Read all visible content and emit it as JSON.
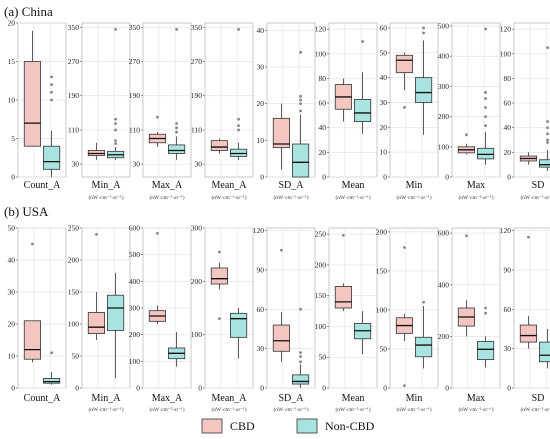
{
  "colors": {
    "cbd": "#f4c6c2",
    "non_cbd": "#a9e3e0",
    "stroke": "#333333",
    "grid": "#e4e4e4",
    "outlier": "#888888"
  },
  "legend": {
    "items": [
      {
        "key": "cbd",
        "label": "CBD"
      },
      {
        "key": "non_cbd",
        "label": "Non-CBD"
      }
    ]
  },
  "chart_data": [
    {
      "type": "boxplot",
      "panel_label": "(a) China",
      "subplots": [
        {
          "xlabel": "Count_A",
          "unit": "",
          "ylim": [
            0,
            20
          ],
          "ticks": [
            0,
            5,
            10,
            15,
            20
          ],
          "series": [
            {
              "name": "CBD",
              "min": 4,
              "q1": 4,
              "median": 7,
              "q3": 15,
              "max": 19,
              "outliers": []
            },
            {
              "name": "Non-CBD",
              "min": 0,
              "q1": 1,
              "median": 2,
              "q3": 4,
              "max": 6,
              "outliers": [
                10,
                11,
                12,
                13
              ]
            }
          ]
        },
        {
          "xlabel": "Min_A",
          "unit": "(nW·cm⁻²·sr⁻¹)",
          "ylim": [
            0,
            360
          ],
          "ticks": [
            30,
            110,
            190,
            270,
            350
          ],
          "series": [
            {
              "name": "CBD",
              "min": 40,
              "q1": 50,
              "median": 55,
              "q3": 62,
              "max": 80,
              "outliers": []
            },
            {
              "name": "Non-CBD",
              "min": 40,
              "q1": 45,
              "median": 52,
              "q3": 60,
              "max": 70,
              "outliers": [
                78,
                85,
                110,
                125,
                135,
                345
              ]
            }
          ]
        },
        {
          "xlabel": "Max_A",
          "unit": "(nW·cm⁻²·sr⁻¹)",
          "ylim": [
            0,
            360
          ],
          "ticks": [
            30,
            110,
            190,
            270,
            350
          ],
          "series": [
            {
              "name": "CBD",
              "min": 70,
              "q1": 80,
              "median": 90,
              "q3": 100,
              "max": 105,
              "outliers": [
                140
              ]
            },
            {
              "name": "Non-CBD",
              "min": 40,
              "q1": 55,
              "median": 62,
              "q3": 75,
              "max": 95,
              "outliers": [
                105,
                115,
                125,
                345
              ]
            }
          ]
        },
        {
          "xlabel": "Mean_A",
          "unit": "(nW·cm⁻²·sr⁻¹)",
          "ylim": [
            0,
            360
          ],
          "ticks": [
            30,
            110,
            190,
            270,
            350
          ],
          "series": [
            {
              "name": "CBD",
              "min": 55,
              "q1": 62,
              "median": 70,
              "q3": 85,
              "max": 90,
              "outliers": []
            },
            {
              "name": "Non-CBD",
              "min": 40,
              "q1": 48,
              "median": 55,
              "q3": 65,
              "max": 80,
              "outliers": [
                110,
                120,
                135,
                345
              ]
            }
          ]
        },
        {
          "xlabel": "SD_A",
          "unit": "(nW·cm⁻²·sr⁻¹)",
          "ylim": [
            0,
            42
          ],
          "ticks": [
            0,
            10,
            20,
            30,
            40
          ],
          "series": [
            {
              "name": "CBD",
              "min": 2,
              "q1": 8,
              "median": 9,
              "q3": 16,
              "max": 20,
              "outliers": []
            },
            {
              "name": "Non-CBD",
              "min": 0,
              "q1": 0,
              "median": 4,
              "q3": 9,
              "max": 17,
              "outliers": [
                18,
                20,
                21,
                22,
                34
              ]
            }
          ]
        },
        {
          "xlabel": "Mean",
          "unit": "(nW·cm⁻²·sr⁻¹)",
          "ylim": [
            0,
            125
          ],
          "ticks": [
            0,
            20,
            40,
            60,
            80,
            100,
            120
          ],
          "series": [
            {
              "name": "CBD",
              "min": 45,
              "q1": 55,
              "median": 65,
              "q3": 75,
              "max": 80,
              "outliers": []
            },
            {
              "name": "Non-CBD",
              "min": 35,
              "q1": 45,
              "median": 52,
              "q3": 63,
              "max": 85,
              "outliers": [
                110
              ]
            }
          ]
        },
        {
          "xlabel": "Min",
          "unit": "(nW·cm⁻²·sr⁻¹)",
          "ylim": [
            0,
            62
          ],
          "ticks": [
            0,
            10,
            20,
            30,
            40,
            50,
            60
          ],
          "series": [
            {
              "name": "CBD",
              "min": 35,
              "q1": 42,
              "median": 47,
              "q3": 49,
              "max": 50,
              "outliers": [
                28
              ]
            },
            {
              "name": "Non-CBD",
              "min": 17,
              "q1": 30,
              "median": 34,
              "q3": 40,
              "max": 55,
              "outliers": [
                58,
                60
              ]
            }
          ]
        },
        {
          "xlabel": "Max",
          "unit": "(nW·cm⁻²·sr⁻¹)",
          "ylim": [
            0,
            510
          ],
          "ticks": [
            0,
            100,
            200,
            300,
            400,
            500
          ],
          "series": [
            {
              "name": "CBD",
              "min": 75,
              "q1": 80,
              "median": 90,
              "q3": 100,
              "max": 110,
              "outliers": [
                140
              ]
            },
            {
              "name": "Non-CBD",
              "min": 40,
              "q1": 60,
              "median": 75,
              "q3": 95,
              "max": 150,
              "outliers": [
                170,
                200,
                230,
                260,
                280,
                490
              ]
            }
          ]
        },
        {
          "xlabel": "SD",
          "unit": "(nW·cm⁻²·sr⁻¹)",
          "ylim": [
            0,
            125
          ],
          "ticks": [
            0,
            20,
            40,
            60,
            80,
            100,
            120
          ],
          "series": [
            {
              "name": "CBD",
              "min": 10,
              "q1": 13,
              "median": 15,
              "q3": 17,
              "max": 20,
              "outliers": []
            },
            {
              "name": "Non-CBD",
              "min": 5,
              "q1": 8,
              "median": 10,
              "q3": 14,
              "max": 22,
              "outliers": [
                28,
                30,
                35,
                40,
                45,
                105
              ]
            }
          ]
        }
      ]
    },
    {
      "type": "boxplot",
      "panel_label": "(b) USA",
      "subplots": [
        {
          "xlabel": "Count_A",
          "unit": "",
          "ylim": [
            0,
            50
          ],
          "ticks": [
            0,
            10,
            20,
            30,
            40,
            50
          ],
          "series": [
            {
              "name": "CBD",
              "min": 8,
              "q1": 9,
              "median": 12,
              "q3": 21,
              "max": 21,
              "outliers": [
                45
              ]
            },
            {
              "name": "Non-CBD",
              "min": 1,
              "q1": 1.5,
              "median": 2,
              "q3": 3,
              "max": 5,
              "outliers": [
                11
              ]
            }
          ]
        },
        {
          "xlabel": "Min_A",
          "unit": "(nW·cm⁻²·sr⁻¹)",
          "ylim": [
            0,
            250
          ],
          "ticks": [
            0,
            50,
            100,
            150,
            200,
            250
          ],
          "series": [
            {
              "name": "CBD",
              "min": 75,
              "q1": 85,
              "median": 95,
              "q3": 118,
              "max": 150,
              "outliers": [
                240
              ]
            },
            {
              "name": "Non-CBD",
              "min": 15,
              "q1": 90,
              "median": 125,
              "q3": 145,
              "max": 180,
              "outliers": []
            }
          ]
        },
        {
          "xlabel": "Max_A",
          "unit": "(nW·cm⁻²·sr⁻¹)",
          "ylim": [
            0,
            600
          ],
          "ticks": [
            0,
            100,
            200,
            300,
            400,
            500,
            600
          ],
          "series": [
            {
              "name": "CBD",
              "min": 240,
              "q1": 250,
              "median": 270,
              "q3": 290,
              "max": 310,
              "outliers": [
                580
              ]
            },
            {
              "name": "Non-CBD",
              "min": 80,
              "q1": 110,
              "median": 130,
              "q3": 150,
              "max": 210,
              "outliers": []
            }
          ]
        },
        {
          "xlabel": "Mean_A",
          "unit": "(nW·cm⁻²·sr⁻¹)",
          "ylim": [
            0,
            300
          ],
          "ticks": [
            0,
            100,
            200,
            300
          ],
          "series": [
            {
              "name": "CBD",
              "min": 185,
              "q1": 195,
              "median": 205,
              "q3": 225,
              "max": 235,
              "outliers": [
                130,
                255
              ]
            },
            {
              "name": "Non-CBD",
              "min": 55,
              "q1": 95,
              "median": 130,
              "q3": 140,
              "max": 150,
              "outliers": []
            }
          ]
        },
        {
          "xlabel": "SD_A",
          "unit": "(nW·cm⁻²·sr⁻¹)",
          "ylim": [
            0,
            122
          ],
          "ticks": [
            0,
            30,
            60,
            90,
            120
          ],
          "series": [
            {
              "name": "CBD",
              "min": 20,
              "q1": 28,
              "median": 36,
              "q3": 48,
              "max": 58,
              "outliers": [
                105
              ]
            },
            {
              "name": "Non-CBD",
              "min": 0,
              "q1": 3,
              "median": 5,
              "q3": 10,
              "max": 18,
              "outliers": [
                20,
                24,
                27,
                60
              ]
            }
          ]
        },
        {
          "xlabel": "Mean",
          "unit": "(nW·cm⁻²·sr⁻¹)",
          "ylim": [
            0,
            260
          ],
          "ticks": [
            0,
            50,
            100,
            150,
            200,
            250
          ],
          "series": [
            {
              "name": "CBD",
              "min": 125,
              "q1": 130,
              "median": 140,
              "q3": 165,
              "max": 170,
              "outliers": [
                248
              ]
            },
            {
              "name": "Non-CBD",
              "min": 55,
              "q1": 80,
              "median": 93,
              "q3": 105,
              "max": 125,
              "outliers": []
            }
          ]
        },
        {
          "xlabel": "Min",
          "unit": "(nW·cm⁻²·sr⁻¹)",
          "ylim": [
            0,
            205
          ],
          "ticks": [
            0,
            50,
            100,
            150,
            200
          ],
          "series": [
            {
              "name": "CBD",
              "min": 60,
              "q1": 70,
              "median": 80,
              "q3": 90,
              "max": 95,
              "outliers": [
                3,
                180
              ]
            },
            {
              "name": "Non-CBD",
              "min": 25,
              "q1": 40,
              "median": 55,
              "q3": 65,
              "max": 105,
              "outliers": [
                110
              ]
            }
          ]
        },
        {
          "xlabel": "Max",
          "unit": "(nW·cm⁻²·sr⁻¹)",
          "ylim": [
            0,
            620
          ],
          "ticks": [
            0,
            200,
            400,
            600
          ],
          "series": [
            {
              "name": "CBD",
              "min": 200,
              "q1": 240,
              "median": 275,
              "q3": 310,
              "max": 340,
              "outliers": [
                590
              ]
            },
            {
              "name": "Non-CBD",
              "min": 80,
              "q1": 110,
              "median": 150,
              "q3": 180,
              "max": 200,
              "outliers": [
                290,
                310
              ]
            }
          ]
        },
        {
          "xlabel": "SD",
          "unit": "(nW·cm⁻²·sr⁻¹)",
          "ylim": [
            0,
            122
          ],
          "ticks": [
            0,
            30,
            60,
            90,
            120
          ],
          "series": [
            {
              "name": "CBD",
              "min": 30,
              "q1": 35,
              "median": 40,
              "q3": 48,
              "max": 55,
              "outliers": [
                115
              ]
            },
            {
              "name": "Non-CBD",
              "min": 15,
              "q1": 20,
              "median": 25,
              "q3": 35,
              "max": 45,
              "outliers": []
            }
          ]
        }
      ]
    }
  ]
}
